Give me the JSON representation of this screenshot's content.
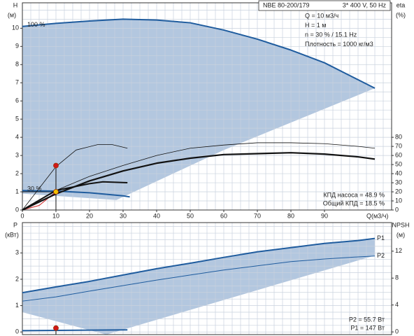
{
  "chart_data": [
    {
      "type": "line",
      "ylabel": "H",
      "yunit": "(м)",
      "y2label": "eta",
      "y2unit": "(%)",
      "xlabel": "Q(м3/ч)",
      "xlim": [
        0,
        110
      ],
      "ylim": [
        0,
        11.4
      ],
      "y2lim": [
        0,
        228
      ],
      "xticks": [
        0,
        10,
        20,
        30,
        40,
        50,
        60,
        70,
        80,
        90
      ],
      "yticks": [
        0,
        1,
        2,
        3,
        4,
        5,
        6,
        7,
        8,
        9,
        10
      ],
      "y2ticks": [
        0,
        10,
        20,
        30,
        40,
        50,
        60,
        70,
        80
      ],
      "xgrid": [
        0,
        2.5,
        5,
        7.5,
        10,
        12.5,
        15,
        17.5,
        20,
        22.5,
        25,
        27.5,
        30,
        32.5,
        35,
        37.5,
        40,
        42.5,
        45,
        47.5,
        50,
        52.5,
        55,
        57.5,
        60,
        62.5,
        65,
        67.5,
        70,
        72.5,
        75,
        77.5,
        80,
        82.5,
        85,
        87.5,
        90,
        92.5,
        95,
        97.5,
        100,
        102.5,
        105,
        107.5,
        110
      ],
      "ygrid": [
        0,
        0.5,
        1,
        1.5,
        2,
        2.5,
        3,
        3.5,
        4,
        4.5,
        5,
        5.5,
        6,
        6.5,
        7,
        7.5,
        8,
        8.5,
        9,
        9.5,
        10,
        10.5,
        11
      ],
      "area_color": "#b3c7df",
      "area_lower": {
        "x": [
          105,
          60,
          28,
          0
        ],
        "values": [
          6.7,
          3.3,
          0.55,
          0.9
        ]
      },
      "series": [
        {
          "name": "100 %",
          "label_position": "start",
          "color": "#1f5c9e",
          "width": 2,
          "x": [
            0,
            10,
            20,
            30,
            40,
            50,
            60,
            70,
            80,
            90,
            97.5,
            105
          ],
          "values": [
            10.1,
            10.27,
            10.4,
            10.5,
            10.45,
            10.3,
            9.9,
            9.4,
            8.8,
            8.1,
            7.4,
            6.7
          ]
        },
        {
          "name": "30 %",
          "label_position": "start",
          "color": "#1f5c9e",
          "width": 2,
          "x": [
            0,
            10,
            20,
            30,
            32
          ],
          "values": [
            1.07,
            1.04,
            0.95,
            0.78,
            0.72
          ]
        },
        {
          "color": "#d02020",
          "width": 1,
          "x": [
            0,
            5,
            10
          ],
          "values": [
            0,
            0.25,
            1
          ]
        },
        {
          "axis": "y2",
          "color": "#111",
          "width": 0.8,
          "x": [
            0,
            10,
            20,
            30,
            40,
            50,
            60,
            70,
            80,
            90,
            100,
            105
          ],
          "values": [
            0,
            21.5,
            37,
            49,
            60,
            68,
            71.5,
            74,
            74,
            73,
            70,
            68
          ]
        },
        {
          "axis": "y2",
          "color": "#111",
          "width": 2.2,
          "x": [
            0,
            10,
            20,
            30,
            40,
            50,
            60,
            70,
            80,
            90,
            100,
            105
          ],
          "values": [
            0,
            17.7,
            32,
            43,
            51.5,
            57,
            61,
            62,
            63,
            61.5,
            58.5,
            56
          ]
        },
        {
          "axis": "y2",
          "color": "#111",
          "width": 0.8,
          "x": [
            0,
            10,
            16,
            22.5,
            26.7,
            31.3
          ],
          "values": [
            0,
            47.7,
            66,
            72,
            72,
            68
          ]
        },
        {
          "axis": "y2",
          "color": "#111",
          "width": 2,
          "x": [
            0,
            10,
            20,
            24,
            31.3
          ],
          "values": [
            0,
            21.5,
            29,
            31,
            30
          ]
        }
      ],
      "markers": [
        {
          "x": 10,
          "value": 1,
          "color": "#f2c200"
        },
        {
          "x": 10,
          "value": 48.9,
          "axis": "y2",
          "color": "#d01818"
        }
      ],
      "info": {
        "model": "NBE 80-200/179",
        "supply": "3* 400 V, 50 Hz",
        "lines": [
          "Q = 10 м3/ч",
          "H = 1 м",
          "n = 30 % / 15.1 Hz",
          "Плотность = 1000 кг/м3"
        ]
      },
      "notes": [
        "КПД насоса = 48.9 %",
        "Общий КПД = 18.5 %"
      ]
    },
    {
      "type": "line",
      "ylabel": "P",
      "yunit": "(кВт)",
      "y2label": "NPSH",
      "y2unit": "(м)",
      "xlim": [
        0,
        110
      ],
      "ylim": [
        -0.1,
        4.15
      ],
      "y2lim": [
        -0.4,
        16.25
      ],
      "yticks": [
        0,
        1,
        2,
        3
      ],
      "y2ticks": [
        0,
        4,
        8,
        12
      ],
      "xgrid": [
        0,
        2.5,
        5,
        7.5,
        10,
        12.5,
        15,
        17.5,
        20,
        22.5,
        25,
        27.5,
        30,
        32.5,
        35,
        37.5,
        40,
        42.5,
        45,
        47.5,
        50,
        52.5,
        55,
        57.5,
        60,
        62.5,
        65,
        67.5,
        70,
        72.5,
        75,
        77.5,
        80,
        82.5,
        85,
        87.5,
        90,
        92.5,
        95,
        97.5,
        100,
        102.5,
        105,
        107.5,
        110
      ],
      "ygrid": [
        0,
        0.25,
        0.5,
        0.75,
        1,
        1.25,
        1.5,
        1.75,
        2,
        2.25,
        2.5,
        2.75,
        3,
        3.25,
        3.5,
        3.75,
        4
      ],
      "area_color": "#b3c7df",
      "area_lower": {
        "x": [
          105,
          25,
          0
        ],
        "values": [
          2.9,
          -0.1,
          0.75
        ]
      },
      "series": [
        {
          "name": "P1",
          "label_position": "end",
          "color": "#1f5c9e",
          "width": 2,
          "x": [
            0,
            10,
            20,
            30,
            40,
            50,
            60,
            70,
            80,
            90,
            100,
            105
          ],
          "values": [
            1.49,
            1.71,
            1.92,
            2.16,
            2.4,
            2.61,
            2.83,
            3.04,
            3.2,
            3.36,
            3.47,
            3.55
          ]
        },
        {
          "name": "P2",
          "label_position": "end",
          "color": "#1f5c9e",
          "width": 1,
          "x": [
            0,
            10,
            20,
            30,
            40,
            50,
            60,
            70,
            80,
            90,
            100,
            105
          ],
          "values": [
            1.17,
            1.33,
            1.55,
            1.76,
            1.97,
            2.16,
            2.35,
            2.51,
            2.67,
            2.77,
            2.85,
            2.88
          ]
        },
        {
          "color": "#1f5c9e",
          "width": 2,
          "x": [
            0,
            31.3
          ],
          "values": [
            0.05,
            0.08
          ]
        }
      ],
      "markers": [
        {
          "x": 10,
          "value": 0.147,
          "color": "#d01818"
        }
      ],
      "notes": [
        "P2 = 55.7 Вт",
        "P1 = 147 Вт"
      ]
    }
  ]
}
